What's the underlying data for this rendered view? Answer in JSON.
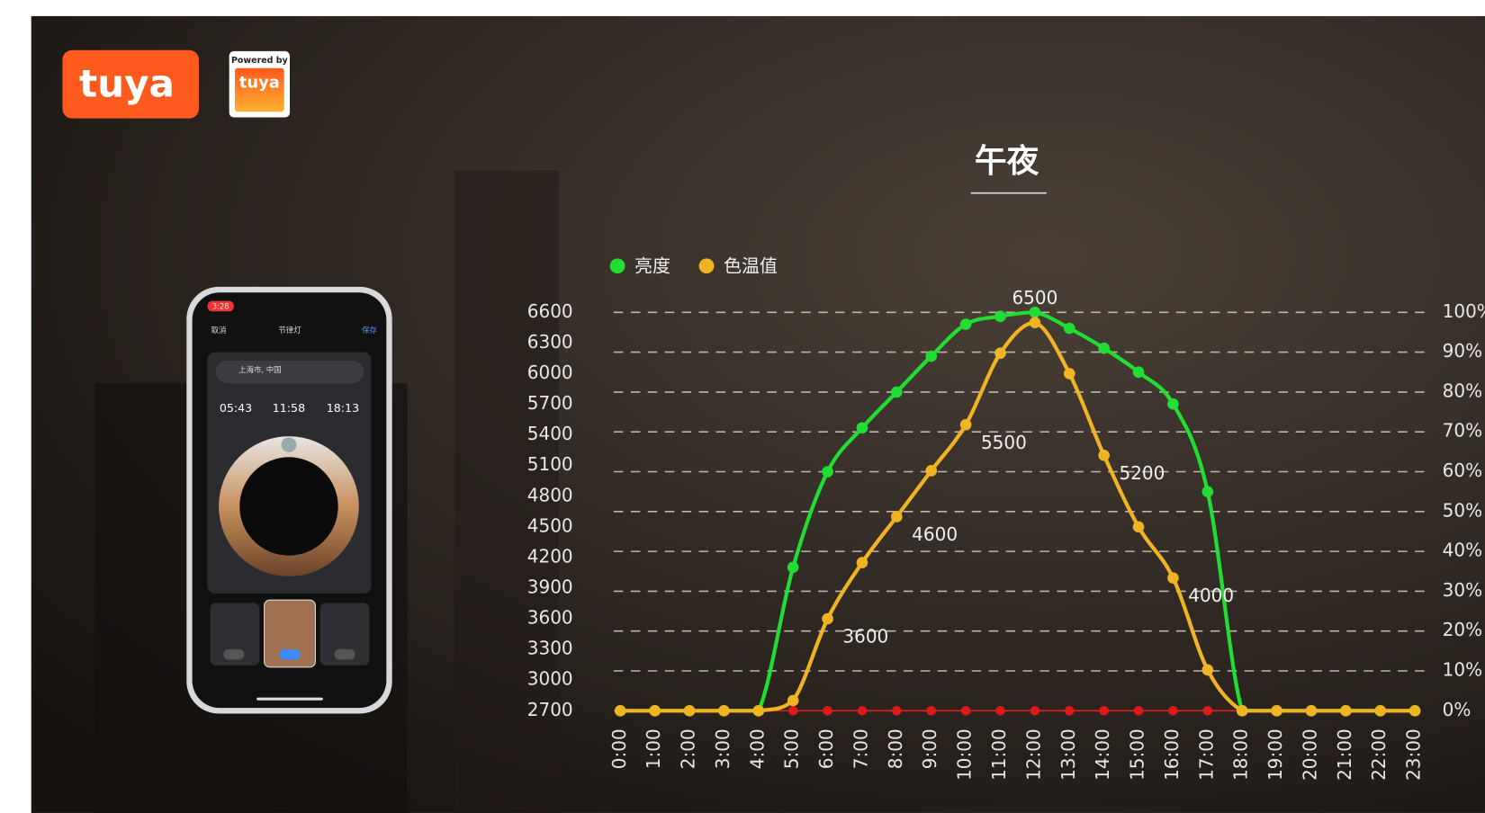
{
  "logo": {
    "brand": "tuya",
    "badge_top": "Powered by",
    "badge_brand": "tuya"
  },
  "phone": {
    "status_time": "3:28",
    "cancel": "取消",
    "title": "节律灯",
    "save": "保存",
    "location": "上海市, 中国",
    "times": [
      "05:43",
      "11:58",
      "18:13"
    ]
  },
  "chart_data": {
    "type": "line",
    "title": "午夜",
    "categories": [
      "0:00",
      "1:00",
      "2:00",
      "3:00",
      "4:00",
      "5:00",
      "6:00",
      "7:00",
      "8:00",
      "9:00",
      "10:00",
      "11:00",
      "12:00",
      "13:00",
      "14:00",
      "15:00",
      "16:00",
      "17:00",
      "18:00",
      "19:00",
      "20:00",
      "21:00",
      "22:00",
      "23:00"
    ],
    "series": [
      {
        "name": "亮度",
        "color": "#22dd33",
        "axis": "y2",
        "values": [
          0,
          0,
          0,
          0,
          0,
          36,
          60,
          71,
          80,
          89,
          97,
          99,
          100,
          96,
          91,
          85,
          77,
          55,
          0,
          0,
          0,
          0,
          0,
          0
        ]
      },
      {
        "name": "色温值",
        "color": "#f0b323",
        "values": [
          2700,
          2700,
          2700,
          2700,
          2700,
          2800,
          3600,
          4150,
          4600,
          5050,
          5500,
          6200,
          6500,
          6000,
          5200,
          4500,
          4000,
          3100,
          2700,
          2700,
          2700,
          2700,
          2700,
          2700
        ],
        "value_labels": [
          null,
          null,
          null,
          null,
          null,
          null,
          "3600",
          null,
          "4600",
          null,
          "5500",
          null,
          "6500",
          null,
          "5200",
          null,
          "4000",
          null,
          null,
          null,
          null,
          null,
          null,
          null
        ]
      }
    ],
    "ylim": [
      2700,
      6600
    ],
    "yticks": [
      2700,
      3000,
      3300,
      3600,
      3900,
      4200,
      4500,
      4800,
      5100,
      5400,
      5700,
      6000,
      6300,
      6600
    ],
    "y2lim": [
      0,
      100
    ],
    "y2ticks": [
      {
        "value": 0,
        "label": "0%"
      },
      {
        "value": 10,
        "label": "10%"
      },
      {
        "value": 20,
        "label": "20%"
      },
      {
        "value": 30,
        "label": "30%"
      },
      {
        "value": 40,
        "label": "40%"
      },
      {
        "value": 50,
        "label": "50%"
      },
      {
        "value": 60,
        "label": "60%"
      },
      {
        "value": 70,
        "label": "70%"
      },
      {
        "value": 80,
        "label": "80%"
      },
      {
        "value": 90,
        "label": "90%"
      },
      {
        "value": 100,
        "label": "100%"
      }
    ],
    "grid": true,
    "legend": "top-left"
  }
}
